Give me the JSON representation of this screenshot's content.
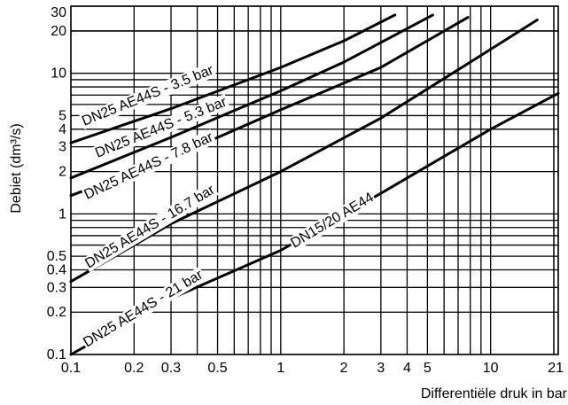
{
  "chart_data": {
    "type": "line",
    "title": "",
    "xlabel": "Differentiële druk in bar",
    "ylabel": "Debiet (dm³/s)",
    "xscale": "log",
    "yscale": "log",
    "xlim": [
      0.1,
      21
    ],
    "ylim": [
      0.1,
      30
    ],
    "grid": true,
    "legend": "none",
    "x_ticks": [
      {
        "v": 0.1,
        "label": "0.1"
      },
      {
        "v": 0.2,
        "label": "0.2"
      },
      {
        "v": 0.3,
        "label": "0.3"
      },
      {
        "v": 0.5,
        "label": "0.5"
      },
      {
        "v": 1,
        "label": "1"
      },
      {
        "v": 2,
        "label": "2"
      },
      {
        "v": 3,
        "label": "3"
      },
      {
        "v": 4,
        "label": "4"
      },
      {
        "v": 5,
        "label": "5"
      },
      {
        "v": 10,
        "label": "10"
      },
      {
        "v": 21,
        "label": "21"
      }
    ],
    "y_ticks": [
      {
        "v": 0.1,
        "label": "0.1"
      },
      {
        "v": 0.2,
        "label": "0.2"
      },
      {
        "v": 0.3,
        "label": "0.3"
      },
      {
        "v": 0.4,
        "label": "0.4"
      },
      {
        "v": 0.5,
        "label": "0.5"
      },
      {
        "v": 1,
        "label": "1"
      },
      {
        "v": 2,
        "label": "2"
      },
      {
        "v": 3,
        "label": "3"
      },
      {
        "v": 4,
        "label": "4"
      },
      {
        "v": 5,
        "label": "5"
      },
      {
        "v": 10,
        "label": "10"
      },
      {
        "v": 20,
        "label": "20"
      },
      {
        "v": 30,
        "label": "30"
      }
    ],
    "series": [
      {
        "name": "DN25 AE44S - 3.5 bar",
        "x": [
          0.1,
          0.3,
          1,
          2,
          3.5
        ],
        "y": [
          3.2,
          5.6,
          11,
          17,
          26
        ]
      },
      {
        "name": "DN25 AE44S - 5.3 bar",
        "x": [
          0.1,
          0.3,
          1,
          2,
          5.3
        ],
        "y": [
          1.8,
          3.5,
          7.5,
          12,
          26
        ]
      },
      {
        "name": "DN25 AE44S - 7.8 bar",
        "x": [
          0.1,
          0.3,
          1,
          3,
          7.8
        ],
        "y": [
          1.35,
          2.5,
          5.5,
          11,
          25
        ]
      },
      {
        "name": "DN25 AE44S - 16.7 bar",
        "x": [
          0.1,
          0.3,
          1,
          3,
          8,
          16.7
        ],
        "y": [
          0.33,
          0.85,
          2,
          4.8,
          12,
          24
        ]
      },
      {
        "name": "DN15/20 AE44",
        "x": [
          0.1,
          0.3,
          1,
          3,
          10,
          21
        ],
        "y": [
          0.1,
          0.25,
          0.55,
          1.4,
          4,
          7.2
        ]
      }
    ],
    "curve_labels": [
      {
        "text": "DN25 AE44S - 3.5 bar"
      },
      {
        "text": "DN25 AE44S - 5.3 bar"
      },
      {
        "text": "DN25 AE44S - 7.8 bar"
      },
      {
        "text": "DN25 AE44S - 16.7 bar"
      },
      {
        "text": "DN25 AE44S - 21 bar"
      },
      {
        "text": "DN15/20 AE44"
      }
    ]
  }
}
